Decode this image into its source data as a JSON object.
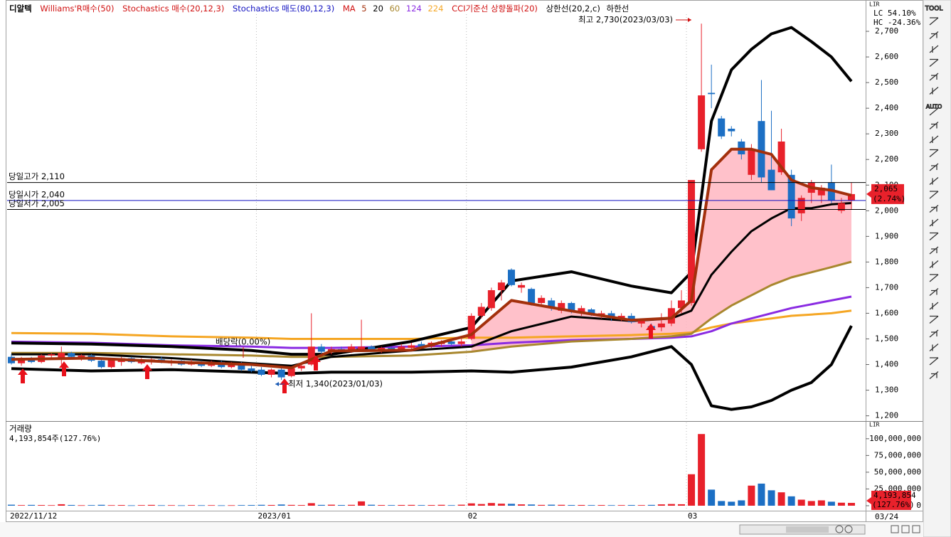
{
  "header": {
    "symbol": "디알텍",
    "indicators": [
      "Williams'R매수(50)",
      "Stochastics 매수(20,12,3)",
      "Stochastics 매도(80,12,3)"
    ],
    "ma": "MA",
    "cci": "CCI기준선 상향돌파(20)",
    "range_labels": [
      "LC  54.10%",
      "HC -24.36%"
    ],
    "scale_box": "LIR"
  },
  "toolbar": {
    "labels": [
      "TOOL",
      "AUTO"
    ]
  },
  "chart_data": [
    {
      "type": "candlestick",
      "up_color": "#e8212b",
      "down_color": "#1c6fc4",
      "categories": [
        "2022/11/12",
        null,
        null,
        null,
        null,
        null,
        null,
        null,
        null,
        null,
        null,
        null,
        null,
        null,
        null,
        null,
        null,
        null,
        null,
        null,
        null,
        null,
        null,
        null,
        null,
        "2023/01",
        null,
        null,
        null,
        null,
        null,
        null,
        null,
        null,
        null,
        null,
        null,
        null,
        null,
        null,
        null,
        null,
        null,
        null,
        null,
        null,
        "02",
        null,
        null,
        null,
        null,
        null,
        null,
        null,
        null,
        null,
        null,
        null,
        null,
        null,
        null,
        null,
        null,
        null,
        null,
        null,
        null,
        null,
        "03",
        null,
        null,
        null,
        null,
        null,
        null,
        null,
        null,
        null,
        null,
        null,
        null,
        null,
        null,
        null,
        null
      ],
      "last_date": "03/24",
      "ohlc": [
        [
          1430,
          1440,
          1400,
          1405
        ],
        [
          1405,
          1430,
          1395,
          1425
        ],
        [
          1425,
          1430,
          1405,
          1410
        ],
        [
          1410,
          1440,
          1405,
          1435
        ],
        [
          1435,
          1445,
          1420,
          1440
        ],
        [
          1420,
          1470,
          1400,
          1445
        ],
        [
          1445,
          1450,
          1425,
          1430
        ],
        [
          1425,
          1440,
          1415,
          1435
        ],
        [
          1435,
          1440,
          1410,
          1415
        ],
        [
          1415,
          1425,
          1385,
          1390
        ],
        [
          1390,
          1425,
          1385,
          1420
        ],
        [
          1410,
          1430,
          1395,
          1425
        ],
        [
          1425,
          1430,
          1405,
          1410
        ],
        [
          1405,
          1425,
          1400,
          1420
        ],
        [
          1410,
          1425,
          1400,
          1420
        ],
        [
          1420,
          1430,
          1405,
          1410
        ],
        [
          1405,
          1420,
          1395,
          1415
        ],
        [
          1415,
          1420,
          1395,
          1400
        ],
        [
          1400,
          1420,
          1395,
          1410
        ],
        [
          1410,
          1415,
          1390,
          1395
        ],
        [
          1395,
          1415,
          1390,
          1410
        ],
        [
          1410,
          1415,
          1385,
          1390
        ],
        [
          1390,
          1410,
          1385,
          1400
        ],
        [
          1400,
          1410,
          1375,
          1380
        ],
        [
          1385,
          1395,
          1370,
          1375
        ],
        [
          1380,
          1390,
          1355,
          1360
        ],
        [
          1360,
          1385,
          1350,
          1380
        ],
        [
          1380,
          1385,
          1340,
          1350
        ],
        [
          1355,
          1390,
          1350,
          1385
        ],
        [
          1385,
          1400,
          1375,
          1395
        ],
        [
          1400,
          1600,
          1395,
          1470
        ],
        [
          1470,
          1480,
          1440,
          1450
        ],
        [
          1450,
          1470,
          1440,
          1460
        ],
        [
          1460,
          1470,
          1450,
          1455
        ],
        [
          1455,
          1480,
          1445,
          1470
        ],
        [
          1460,
          1575,
          1450,
          1470
        ],
        [
          1470,
          1475,
          1450,
          1455
        ],
        [
          1455,
          1470,
          1445,
          1465
        ],
        [
          1465,
          1470,
          1455,
          1460
        ],
        [
          1460,
          1480,
          1450,
          1470
        ],
        [
          1465,
          1485,
          1455,
          1475
        ],
        [
          1480,
          1490,
          1465,
          1470
        ],
        [
          1470,
          1490,
          1465,
          1485
        ],
        [
          1480,
          1495,
          1470,
          1490
        ],
        [
          1490,
          1495,
          1475,
          1480
        ],
        [
          1480,
          1500,
          1470,
          1490
        ],
        [
          1500,
          1600,
          1495,
          1590
        ],
        [
          1590,
          1640,
          1580,
          1625
        ],
        [
          1620,
          1700,
          1610,
          1690
        ],
        [
          1690,
          1730,
          1650,
          1720
        ],
        [
          1770,
          1775,
          1705,
          1710
        ],
        [
          1700,
          1720,
          1680,
          1710
        ],
        [
          1695,
          1700,
          1630,
          1640
        ],
        [
          1640,
          1670,
          1630,
          1660
        ],
        [
          1650,
          1660,
          1610,
          1620
        ],
        [
          1610,
          1650,
          1600,
          1640
        ],
        [
          1640,
          1645,
          1600,
          1610
        ],
        [
          1600,
          1630,
          1590,
          1620
        ],
        [
          1615,
          1620,
          1590,
          1595
        ],
        [
          1590,
          1610,
          1580,
          1600
        ],
        [
          1600,
          1610,
          1570,
          1580
        ],
        [
          1580,
          1600,
          1570,
          1590
        ],
        [
          1590,
          1600,
          1560,
          1565
        ],
        [
          1560,
          1580,
          1545,
          1575
        ],
        [
          1550,
          1560,
          1530,
          1540
        ],
        [
          1545,
          1600,
          1530,
          1560
        ],
        [
          1560,
          1650,
          1550,
          1620
        ],
        [
          1620,
          1690,
          1600,
          1650
        ],
        [
          1640,
          2120,
          1630,
          2120
        ],
        [
          2240,
          2730,
          2230,
          2450
        ],
        [
          2460,
          2570,
          2400,
          2455
        ],
        [
          2360,
          2370,
          2280,
          2290
        ],
        [
          2320,
          2330,
          2290,
          2310
        ],
        [
          2270,
          2280,
          2200,
          2220
        ],
        [
          2140,
          2260,
          2120,
          2240
        ],
        [
          2350,
          2510,
          2110,
          2130
        ],
        [
          2160,
          2390,
          2080,
          2080
        ],
        [
          2150,
          2320,
          2140,
          2270
        ],
        [
          2140,
          2160,
          1940,
          1970
        ],
        [
          1990,
          2060,
          1960,
          2050
        ],
        [
          2070,
          2120,
          2030,
          2110
        ],
        [
          2060,
          2100,
          2030,
          2090
        ],
        [
          2110,
          2180,
          2030,
          2040
        ],
        [
          2000,
          2050,
          1990,
          2030
        ],
        [
          2040,
          2110,
          2005,
          2065
        ]
      ],
      "series": [
        {
          "name": "5",
          "color": "#a3300c",
          "x": [
            0,
            8,
            16,
            24,
            28,
            32,
            40,
            46,
            50,
            56,
            62,
            66,
            68,
            70,
            72,
            74,
            76,
            78,
            80,
            82,
            84
          ],
          "values": [
            1420,
            1425,
            1410,
            1400,
            1387,
            1453,
            1456,
            1517,
            1650,
            1609,
            1573,
            1581,
            1650,
            2160,
            2240,
            2240,
            2220,
            2120,
            2090,
            2080,
            2060
          ]
        },
        {
          "name": "20",
          "color": "#000000",
          "x": [
            0,
            8,
            16,
            24,
            28,
            32,
            40,
            46,
            50,
            56,
            62,
            66,
            68,
            70,
            72,
            74,
            76,
            78,
            80,
            82,
            84
          ],
          "values": [
            1440,
            1440,
            1425,
            1405,
            1395,
            1430,
            1455,
            1470,
            1530,
            1587,
            1570,
            1580,
            1610,
            1750,
            1840,
            1920,
            1970,
            2010,
            2010,
            2025,
            2030
          ]
        },
        {
          "name": "60",
          "color": "#a8872e",
          "x": [
            0,
            8,
            16,
            24,
            28,
            32,
            40,
            46,
            50,
            56,
            62,
            66,
            68,
            70,
            72,
            74,
            76,
            78,
            80,
            82,
            84
          ],
          "values": [
            1445,
            1445,
            1440,
            1435,
            1430,
            1430,
            1435,
            1450,
            1470,
            1490,
            1500,
            1510,
            1520,
            1580,
            1630,
            1670,
            1710,
            1740,
            1760,
            1780,
            1801
          ]
        },
        {
          "name": "124",
          "color": "#8a2be2",
          "x": [
            0,
            8,
            16,
            24,
            28,
            32,
            40,
            46,
            50,
            56,
            62,
            66,
            68,
            70,
            72,
            74,
            76,
            78,
            80,
            82,
            84
          ],
          "values": [
            1489,
            1485,
            1475,
            1470,
            1465,
            1465,
            1470,
            1475,
            1485,
            1495,
            1500,
            1505,
            1510,
            1530,
            1560,
            1580,
            1600,
            1620,
            1635,
            1650,
            1665
          ]
        },
        {
          "name": "224",
          "color": "#f5a623",
          "x": [
            0,
            8,
            16,
            24,
            28,
            32,
            40,
            46,
            50,
            56,
            62,
            66,
            68,
            70,
            72,
            74,
            76,
            78,
            80,
            82,
            84
          ],
          "values": [
            1523,
            1520,
            1510,
            1505,
            1500,
            1500,
            1500,
            1505,
            1505,
            1510,
            1515,
            1520,
            1525,
            1545,
            1560,
            1570,
            1580,
            1590,
            1595,
            1600,
            1610
          ]
        },
        {
          "name": "상한선(20,2,c)",
          "color": "#000000",
          "x": [
            0,
            8,
            16,
            24,
            28,
            32,
            40,
            46,
            50,
            56,
            62,
            66,
            68,
            70,
            72,
            74,
            76,
            78,
            80,
            82,
            84
          ],
          "values": [
            1484,
            1480,
            1470,
            1455,
            1440,
            1440,
            1490,
            1545,
            1726,
            1762,
            1706,
            1680,
            1760,
            2350,
            2550,
            2630,
            2690,
            2715,
            2660,
            2600,
            2505
          ]
        },
        {
          "name": "하한선",
          "color": "#000000",
          "x": [
            0,
            8,
            16,
            24,
            28,
            32,
            40,
            46,
            50,
            56,
            62,
            66,
            68,
            70,
            72,
            74,
            76,
            78,
            80,
            82,
            84
          ],
          "values": [
            1384,
            1375,
            1380,
            1370,
            1365,
            1370,
            1370,
            1375,
            1370,
            1390,
            1430,
            1470,
            1400,
            1239,
            1225,
            1235,
            1260,
            1300,
            1330,
            1400,
            1551
          ]
        }
      ],
      "reference_lines": [
        {
          "label": "당일고가 2,110",
          "value": 2110,
          "color": "#000000"
        },
        {
          "label": "당일시가 2,040",
          "value": 2040,
          "color": "#1010c0"
        },
        {
          "label": "당일저가 2,005",
          "value": 2005,
          "color": "#000000"
        }
      ],
      "annotations": [
        {
          "text": "최고 2,730(2023/03/03)",
          "value": 2730,
          "color": "#d01010"
        },
        {
          "text": "최저 1,340(2023/01/03)",
          "value": 1340,
          "color": "#1a5bb5"
        },
        {
          "text": "배당락(0.00%)",
          "color": "#000000"
        }
      ],
      "current_label": "2,065",
      "current_change": "(2.74%)",
      "ylim": [
        1185,
        2800
      ],
      "yticks": [
        {
          "value": 1200,
          "label": "1,200"
        },
        {
          "value": 1300,
          "label": "1,300"
        },
        {
          "value": 1400,
          "label": "1,400"
        },
        {
          "value": 1500,
          "label": "1,500"
        },
        {
          "value": 1600,
          "label": "1,600"
        },
        {
          "value": 1700,
          "label": "1,700"
        },
        {
          "value": 1800,
          "label": "1,800"
        },
        {
          "value": 1900,
          "label": "1,900"
        },
        {
          "value": 2000,
          "label": "2,000"
        },
        {
          "value": 2100,
          "label": "2,100"
        },
        {
          "value": 2200,
          "label": "2,200"
        },
        {
          "value": 2300,
          "label": "2,300"
        },
        {
          "value": 2400,
          "label": "2,400"
        },
        {
          "value": 2500,
          "label": "2,500"
        },
        {
          "value": 2600,
          "label": "2,600"
        },
        {
          "value": 2700,
          "label": "2,700"
        }
      ]
    },
    {
      "type": "volume",
      "title": "거래량",
      "info": "4,193,854주(127.76%)",
      "current_label": "4,193,854",
      "current_change": "(127.76%)",
      "values": [
        1500000,
        900000,
        1200000,
        1000000,
        800000,
        2200000,
        1100000,
        700000,
        900000,
        1300000,
        800000,
        1000000,
        600000,
        900000,
        1200000,
        700000,
        800000,
        600000,
        900000,
        700000,
        800000,
        600000,
        700000,
        900000,
        1000000,
        1300000,
        1100000,
        1800000,
        1200000,
        1000000,
        3800000,
        1200000,
        1500000,
        1000000,
        1300000,
        6500000,
        1400000,
        1000000,
        900000,
        1100000,
        1200000,
        900000,
        1000000,
        1300000,
        800000,
        1500000,
        3500000,
        2500000,
        4000000,
        3000000,
        2800000,
        2000000,
        1800000,
        1200000,
        1500000,
        1300000,
        1000000,
        1100000,
        900000,
        1000000,
        800000,
        900000,
        1000000,
        900000,
        1200000,
        2000000,
        2500000,
        2200000,
        47000000,
        107000000,
        24000000,
        7000000,
        6000000,
        8000000,
        30000000,
        33000000,
        23000000,
        20000000,
        14000000,
        9000000,
        7000000,
        8000000,
        6000000,
        4500000,
        4193854
      ],
      "ylim": [
        0,
        120000000
      ],
      "yticks": [
        0,
        {
          "value": 25000000,
          "label": "25,000,000"
        },
        {
          "value": 50000000,
          "label": "50,000,000"
        },
        {
          "value": 75000000,
          "label": "75,000,000"
        },
        {
          "value": 100000000,
          "label": "100,000,000"
        }
      ]
    }
  ]
}
